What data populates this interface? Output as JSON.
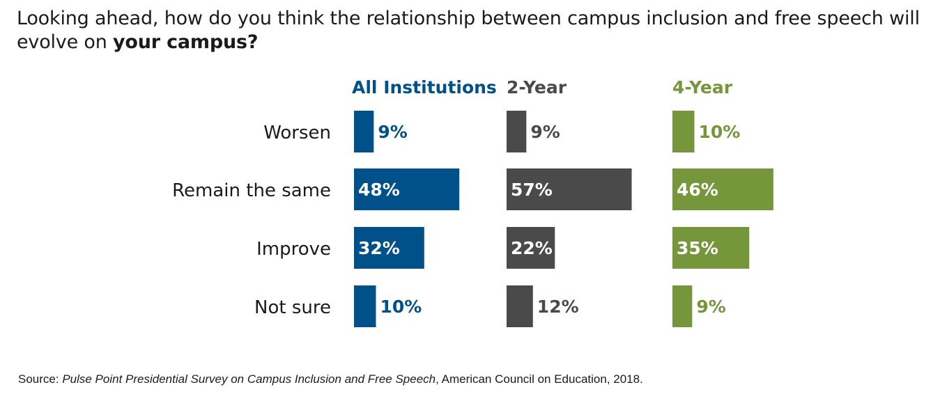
{
  "title": {
    "part1": "Looking ahead, how do you think the relationship between campus inclusion and free speech will evolve on ",
    "bold": "your campus?"
  },
  "source": {
    "label": "Source: ",
    "italic": "Pulse Point Presidential Survey on Campus Inclusion and Free Speech",
    "rest": ", American Council on Education, 2018."
  },
  "colors": {
    "all": "#00508a",
    "two_year": "#4a4a4a",
    "four_year": "#76963b",
    "text": "#1a1a1a",
    "inside_label": "#ffffff"
  },
  "chart_data": {
    "type": "bar",
    "orientation": "horizontal",
    "categories": [
      "Worsen",
      "Remain the same",
      "Improve",
      "Not sure"
    ],
    "series": [
      {
        "name": "All Institutions",
        "values": [
          9,
          48,
          32,
          10
        ],
        "color": "#00508a"
      },
      {
        "name": "2-Year",
        "values": [
          9,
          57,
          22,
          12
        ],
        "color": "#4a4a4a"
      },
      {
        "name": "4-Year",
        "values": [
          10,
          46,
          35,
          9
        ],
        "color": "#76963b"
      }
    ],
    "value_labels": [
      [
        "9%",
        "48%",
        "32%",
        "10%"
      ],
      [
        "9%",
        "57%",
        "22%",
        "12%"
      ],
      [
        "10%",
        "46%",
        "35%",
        "9%"
      ]
    ],
    "unit": "%"
  }
}
